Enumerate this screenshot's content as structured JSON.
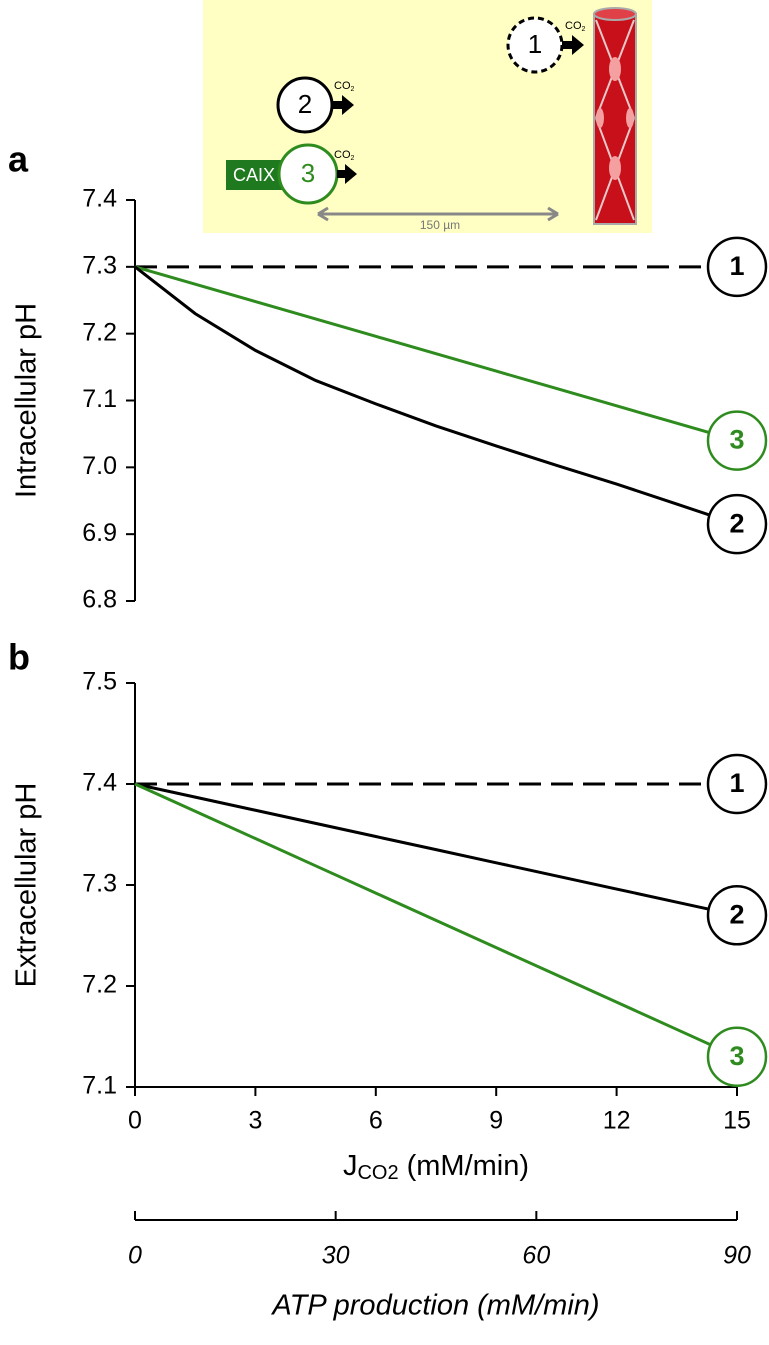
{
  "chart_data": [
    {
      "type": "line",
      "panel": "a",
      "y_label": "Intracellular pH",
      "x": [
        0,
        1.5,
        3,
        4.5,
        6,
        7.5,
        9,
        10.5,
        12,
        13.5,
        15
      ],
      "xlim": [
        0,
        15
      ],
      "ylim": [
        6.8,
        7.4
      ],
      "yticks": [
        {
          "value": 6.8,
          "label": "6.8"
        },
        6.9,
        {
          "value": 7.0,
          "label": "7.0"
        },
        7.1,
        7.2,
        7.3,
        7.4
      ],
      "series": [
        {
          "name": "1",
          "color": "#000000",
          "dash": true,
          "values": [
            7.3,
            7.3,
            7.3,
            7.3,
            7.3,
            7.3,
            7.3,
            7.3,
            7.3,
            7.3,
            7.3
          ]
        },
        {
          "name": "3",
          "color": "#2e8b1e",
          "dash": false,
          "values": [
            7.3,
            7.274,
            7.248,
            7.222,
            7.196,
            7.17,
            7.144,
            7.118,
            7.092,
            7.066,
            7.04
          ]
        },
        {
          "name": "2",
          "color": "#000000",
          "dash": false,
          "values": [
            7.3,
            7.23,
            7.175,
            7.13,
            7.095,
            7.062,
            7.032,
            7.003,
            6.975,
            6.945,
            6.915
          ]
        }
      ]
    },
    {
      "type": "line",
      "panel": "b",
      "y_label": "Extracellular pH",
      "x_label": {
        "main": "J",
        "sub": "CO2",
        "rest": " (mM/min)"
      },
      "x": [
        0,
        1.5,
        3,
        4.5,
        6,
        7.5,
        9,
        10.5,
        12,
        13.5,
        15
      ],
      "xlim": [
        0,
        15
      ],
      "xticks": [
        0,
        3,
        6,
        9,
        12,
        15
      ],
      "ylim": [
        7.1,
        7.5
      ],
      "yticks": [
        7.1,
        7.2,
        7.3,
        7.4,
        7.5
      ],
      "x2lim": [
        0,
        90
      ],
      "x2ticks": [
        0,
        30,
        60,
        90
      ],
      "x2_label": "ATP production (mM/min)",
      "series": [
        {
          "name": "1",
          "color": "#000000",
          "dash": true,
          "values": [
            7.4,
            7.4,
            7.4,
            7.4,
            7.4,
            7.4,
            7.4,
            7.4,
            7.4,
            7.4,
            7.4
          ]
        },
        {
          "name": "2",
          "color": "#000000",
          "dash": false,
          "values": [
            7.4,
            7.387,
            7.374,
            7.361,
            7.348,
            7.335,
            7.322,
            7.309,
            7.296,
            7.283,
            7.27
          ]
        },
        {
          "name": "3",
          "color": "#2e8b1e",
          "dash": false,
          "values": [
            7.4,
            7.373,
            7.346,
            7.319,
            7.292,
            7.265,
            7.238,
            7.211,
            7.184,
            7.157,
            7.13
          ]
        }
      ]
    }
  ],
  "inset": {
    "cells": [
      {
        "label": "1",
        "gas": "CO",
        "sub": "2"
      },
      {
        "label": "2",
        "gas": "CO",
        "sub": "2"
      },
      {
        "label": "3",
        "gas": "CO",
        "sub": "2"
      }
    ],
    "enzyme": "CAIX",
    "distance": "150 µm"
  }
}
